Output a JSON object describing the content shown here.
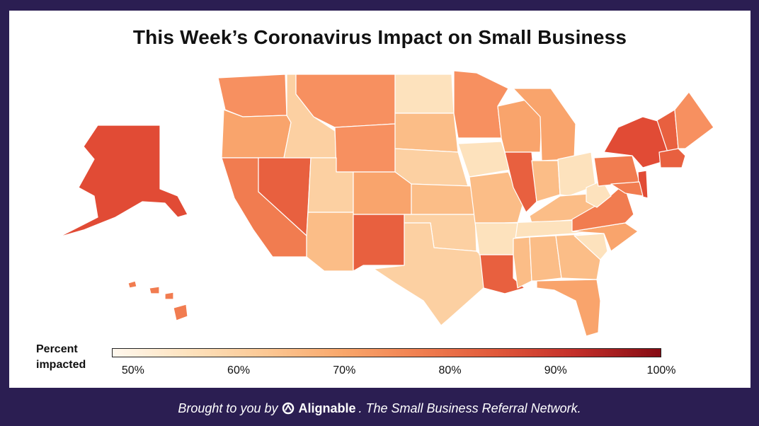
{
  "title": "This Week’s Coronavirus Impact on Small Business",
  "legend": {
    "title_line1": "Percent",
    "title_line2": "impacted",
    "ticks": [
      "50%",
      "60%",
      "70%",
      "80%",
      "90%",
      "100%"
    ],
    "range": [
      48,
      100
    ]
  },
  "colors": {
    "border": "#2b1e52",
    "c55": "#fde2bd",
    "c60": "#fcd0a2",
    "c65": "#fbbd87",
    "c70": "#f9a46c",
    "c73": "#f79060",
    "c76": "#f17c50",
    "c80": "#e8603f",
    "c83": "#e14b35"
  },
  "footer": {
    "prefix": "Brought to you by",
    "brand": "Alignable",
    "suffix": ". The Small Business Referral Network."
  }
}
